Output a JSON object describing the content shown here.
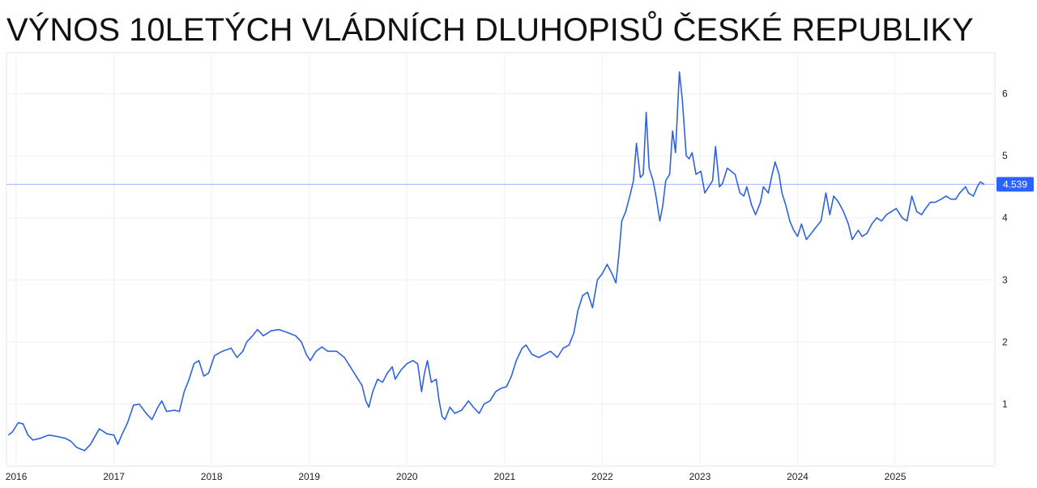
{
  "chart_data": {
    "type": "line",
    "title": "VÝNOS 10LETÝCH VLÁDNÍCH DLUHOPISŮ ČESKÉ REPUBLIKY",
    "x": [
      2015.92,
      2015.96,
      2016.02,
      2016.07,
      2016.12,
      2016.17,
      2016.25,
      2016.33,
      2016.41,
      2016.5,
      2016.56,
      2016.62,
      2016.7,
      2016.76,
      2016.85,
      2016.93,
      2017.0,
      2017.04,
      2017.08,
      2017.14,
      2017.2,
      2017.26,
      2017.33,
      2017.39,
      2017.45,
      2017.49,
      2017.54,
      2017.62,
      2017.67,
      2017.72,
      2017.77,
      2017.82,
      2017.87,
      2017.92,
      2017.97,
      2018.03,
      2018.11,
      2018.2,
      2018.26,
      2018.32,
      2018.36,
      2018.42,
      2018.47,
      2018.53,
      2018.61,
      2018.69,
      2018.78,
      2018.86,
      2018.92,
      2018.97,
      2019.01,
      2019.07,
      2019.13,
      2019.19,
      2019.28,
      2019.36,
      2019.42,
      2019.48,
      2019.54,
      2019.58,
      2019.61,
      2019.65,
      2019.7,
      2019.75,
      2019.8,
      2019.85,
      2019.88,
      2019.94,
      2020.0,
      2020.06,
      2020.11,
      2020.15,
      2020.18,
      2020.21,
      2020.25,
      2020.3,
      2020.33,
      2020.36,
      2020.39,
      2020.44,
      2020.49,
      2020.56,
      2020.63,
      2020.68,
      2020.74,
      2020.79,
      2020.85,
      2020.91,
      2020.96,
      2021.02,
      2021.07,
      2021.12,
      2021.18,
      2021.22,
      2021.28,
      2021.35,
      2021.41,
      2021.47,
      2021.54,
      2021.6,
      2021.66,
      2021.71,
      2021.75,
      2021.8,
      2021.85,
      2021.9,
      2021.95,
      2022.0,
      2022.05,
      2022.1,
      2022.14,
      2022.17,
      2022.2,
      2022.24,
      2022.29,
      2022.32,
      2022.35,
      2022.39,
      2022.42,
      2022.45,
      2022.48,
      2022.52,
      2022.55,
      2022.59,
      2022.62,
      2022.65,
      2022.69,
      2022.72,
      2022.75,
      2022.79,
      2022.82,
      2022.86,
      2022.89,
      2022.92,
      2022.96,
      2023.01,
      2023.05,
      2023.09,
      2023.13,
      2023.16,
      2023.2,
      2023.23,
      2023.28,
      2023.32,
      2023.36,
      2023.41,
      2023.45,
      2023.48,
      2023.53,
      2023.57,
      2023.62,
      2023.65,
      2023.7,
      2023.74,
      2023.77,
      2023.81,
      2023.84,
      2023.88,
      2023.92,
      2023.96,
      2024.0,
      2024.04,
      2024.09,
      2024.14,
      2024.19,
      2024.24,
      2024.29,
      2024.33,
      2024.37,
      2024.42,
      2024.47,
      2024.52,
      2024.56,
      2024.62,
      2024.66,
      2024.71,
      2024.76,
      2024.81,
      2024.86,
      2024.91,
      2024.96,
      2025.01,
      2025.07,
      2025.12,
      2025.17,
      2025.22,
      2025.27,
      2025.31,
      2025.36,
      2025.41,
      2025.47,
      2025.52,
      2025.57,
      2025.62,
      2025.66,
      2025.72,
      2025.75,
      2025.8,
      2025.84,
      2025.87,
      2025.91
    ],
    "series": [
      {
        "color": "#2f62e0",
        "values": [
          0.5,
          0.55,
          0.7,
          0.68,
          0.5,
          0.42,
          0.45,
          0.5,
          0.48,
          0.45,
          0.4,
          0.3,
          0.25,
          0.35,
          0.6,
          0.52,
          0.5,
          0.35,
          0.5,
          0.7,
          0.98,
          1.0,
          0.85,
          0.75,
          0.95,
          1.05,
          0.88,
          0.9,
          0.88,
          1.2,
          1.4,
          1.65,
          1.7,
          1.45,
          1.5,
          1.78,
          1.85,
          1.9,
          1.75,
          1.85,
          2.0,
          2.1,
          2.2,
          2.1,
          2.18,
          2.2,
          2.15,
          2.1,
          2.0,
          1.8,
          1.7,
          1.85,
          1.92,
          1.85,
          1.85,
          1.75,
          1.6,
          1.45,
          1.3,
          1.05,
          0.95,
          1.2,
          1.4,
          1.35,
          1.5,
          1.6,
          1.4,
          1.55,
          1.65,
          1.7,
          1.65,
          1.2,
          1.5,
          1.7,
          1.35,
          1.4,
          1.05,
          0.8,
          0.75,
          0.95,
          0.85,
          0.9,
          1.05,
          0.95,
          0.85,
          1.0,
          1.05,
          1.2,
          1.25,
          1.28,
          1.45,
          1.7,
          1.9,
          1.95,
          1.8,
          1.75,
          1.8,
          1.85,
          1.75,
          1.9,
          1.95,
          2.15,
          2.5,
          2.75,
          2.8,
          2.55,
          3.0,
          3.1,
          3.25,
          3.1,
          2.95,
          3.4,
          3.95,
          4.1,
          4.4,
          4.6,
          5.2,
          4.65,
          4.7,
          5.7,
          4.8,
          4.6,
          4.35,
          3.95,
          4.2,
          4.6,
          4.7,
          5.4,
          5.05,
          6.35,
          5.9,
          5.0,
          4.95,
          5.05,
          4.7,
          4.75,
          4.4,
          4.5,
          4.6,
          5.15,
          4.5,
          4.55,
          4.8,
          4.75,
          4.7,
          4.4,
          4.35,
          4.5,
          4.2,
          4.05,
          4.25,
          4.5,
          4.4,
          4.7,
          4.9,
          4.7,
          4.4,
          4.2,
          3.95,
          3.8,
          3.7,
          3.9,
          3.65,
          3.75,
          3.85,
          3.95,
          4.4,
          4.05,
          4.35,
          4.25,
          4.1,
          3.9,
          3.65,
          3.8,
          3.7,
          3.75,
          3.9,
          4.0,
          3.95,
          4.05,
          4.1,
          4.15,
          4.0,
          3.95,
          4.35,
          4.1,
          4.05,
          4.15,
          4.25,
          4.25,
          4.3,
          4.35,
          4.3,
          4.3,
          4.4,
          4.5,
          4.4,
          4.35,
          4.5,
          4.58,
          4.539
        ]
      }
    ],
    "xlim": [
      2015.9,
      2026.02
    ],
    "xticks": [
      2016,
      2017,
      2018,
      2019,
      2020,
      2021,
      2022,
      2023,
      2024,
      2025
    ],
    "ylim": [
      0,
      6.66
    ],
    "yticks": [
      1,
      2,
      3,
      4,
      5,
      6
    ],
    "grid": true,
    "last_value_color": "#2962ff"
  }
}
